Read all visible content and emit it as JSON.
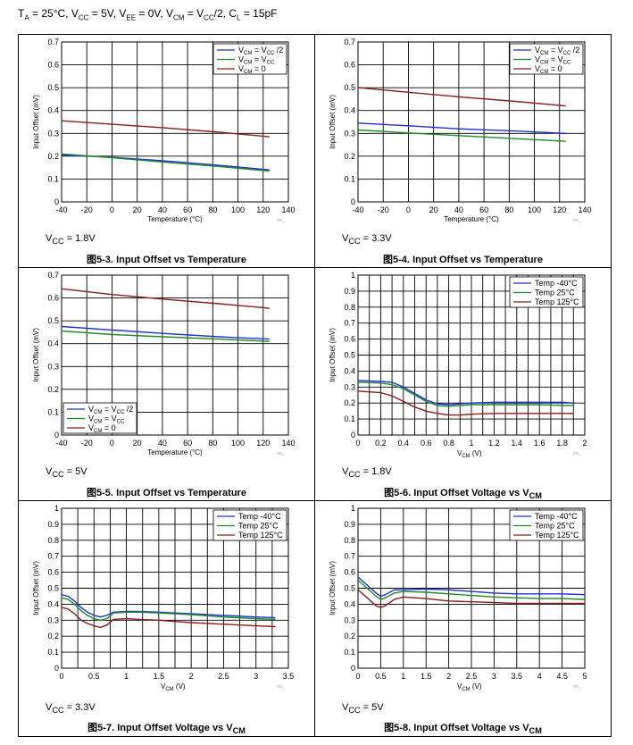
{
  "conditions": {
    "ta_sym": "T",
    "ta_sub": "A",
    "ta_val": " = 25°C, ",
    "vcc_sym": "V",
    "vcc_sub": "CC",
    "vcc_val": " = 5V, ",
    "vee_sym": "V",
    "vee_sub": "EE",
    "vee_val": " = 0V, ",
    "vcm_sym": "V",
    "vcm_sub": "CM",
    "vcm_eq": " = V",
    "vcm_sub2": "CC",
    "vcm_val": "/2, ",
    "cl_sym": "C",
    "cl_sub": "L",
    "cl_val": " = 15pF"
  },
  "watermark": "vio_",
  "colors": {
    "blue": "#1f2fd6",
    "green": "#1b8a2a",
    "red": "#8b1a1a"
  },
  "chart_data": [
    {
      "id": "fig-5-3",
      "type": "line",
      "caption_num": "5-3.",
      "caption_text": "Input Offset vs Temperature",
      "note": "VCC = 1.8V",
      "note_sym": "V",
      "note_sub": "CC",
      "note_val": " = 1.8V",
      "xlabel": "Temperature (°C)",
      "ylabel": "Input Offset (mV)",
      "xlim": [
        -40,
        140
      ],
      "ylim": [
        0,
        0.7
      ],
      "xticks": [
        -40,
        -20,
        0,
        20,
        40,
        60,
        80,
        100,
        120,
        140
      ],
      "yticks": [
        0,
        0.1,
        0.2,
        0.3,
        0.4,
        0.5,
        0.6,
        0.7
      ],
      "xgrid": [
        -40,
        -20,
        0,
        20,
        40,
        60,
        80,
        100,
        120,
        140
      ],
      "ygrid": [
        0,
        0.1,
        0.2,
        0.3,
        0.4,
        0.5,
        0.6,
        0.7
      ],
      "legend_pos": "top-right",
      "series": [
        {
          "name": "VCM = VCC /2",
          "color": "blue",
          "x": [
            -40,
            0,
            40,
            85,
            125
          ],
          "y": [
            0.205,
            0.195,
            0.18,
            0.16,
            0.14
          ]
        },
        {
          "name": "VCM = VCC",
          "color": "green",
          "x": [
            -40,
            0,
            40,
            85,
            125
          ],
          "y": [
            0.21,
            0.193,
            0.175,
            0.155,
            0.135
          ]
        },
        {
          "name": "VCM = 0",
          "color": "red",
          "x": [
            -40,
            0,
            40,
            85,
            125
          ],
          "y": [
            0.355,
            0.34,
            0.325,
            0.305,
            0.285
          ]
        }
      ]
    },
    {
      "id": "fig-5-4",
      "type": "line",
      "caption_num": "5-4.",
      "caption_text": "Input Offset vs Temperature",
      "note": "VCC = 3.3V",
      "note_sym": "V",
      "note_sub": "CC",
      "note_val": " = 3.3V",
      "xlabel": "Temperature (°C)",
      "ylabel": "Input Offset (mV)",
      "xlim": [
        -40,
        140
      ],
      "ylim": [
        0,
        0.7
      ],
      "xticks": [
        -40,
        -20,
        0,
        20,
        40,
        60,
        80,
        100,
        120,
        140
      ],
      "yticks": [
        0,
        0.1,
        0.2,
        0.3,
        0.4,
        0.5,
        0.6,
        0.7
      ],
      "xgrid": [
        -40,
        -20,
        0,
        20,
        40,
        60,
        80,
        100,
        120,
        140
      ],
      "ygrid": [
        0,
        0.1,
        0.2,
        0.3,
        0.4,
        0.5,
        0.6,
        0.7
      ],
      "legend_pos": "top-right",
      "series": [
        {
          "name": "VCM = VCC /2",
          "color": "blue",
          "x": [
            -40,
            0,
            40,
            85,
            125
          ],
          "y": [
            0.345,
            0.333,
            0.32,
            0.31,
            0.3
          ]
        },
        {
          "name": "VCM = VCC",
          "color": "green",
          "x": [
            -40,
            0,
            40,
            85,
            125
          ],
          "y": [
            0.315,
            0.302,
            0.29,
            0.277,
            0.265
          ]
        },
        {
          "name": "VCM = 0",
          "color": "red",
          "x": [
            -40,
            0,
            40,
            85,
            125
          ],
          "y": [
            0.5,
            0.48,
            0.46,
            0.44,
            0.42
          ]
        }
      ]
    },
    {
      "id": "fig-5-5",
      "type": "line",
      "caption_num": "5-5.",
      "caption_text": "Input Offset vs Temperature",
      "note": "VCC = 5V",
      "note_sym": "V",
      "note_sub": "CC",
      "note_val": " = 5V",
      "xlabel": "Temperature (°C)",
      "ylabel": "Input Offset (mV)",
      "xlim": [
        -40,
        140
      ],
      "ylim": [
        0,
        0.7
      ],
      "xticks": [
        -40,
        -20,
        0,
        20,
        40,
        60,
        80,
        100,
        120,
        140
      ],
      "yticks": [
        0,
        0.1,
        0.2,
        0.3,
        0.4,
        0.5,
        0.6,
        0.7
      ],
      "xgrid": [
        -40,
        -20,
        0,
        20,
        40,
        60,
        80,
        100,
        120,
        140
      ],
      "ygrid": [
        0,
        0.1,
        0.2,
        0.3,
        0.4,
        0.5,
        0.6,
        0.7
      ],
      "legend_pos": "bottom-left",
      "series": [
        {
          "name": "VCM = VCC /2",
          "color": "blue",
          "x": [
            -40,
            0,
            40,
            85,
            125
          ],
          "y": [
            0.475,
            0.46,
            0.445,
            0.43,
            0.42
          ]
        },
        {
          "name": "VCM = VCC",
          "color": "green",
          "x": [
            -40,
            0,
            40,
            85,
            125
          ],
          "y": [
            0.455,
            0.44,
            0.43,
            0.42,
            0.41
          ]
        },
        {
          "name": "VCM = 0",
          "color": "red",
          "x": [
            -40,
            0,
            40,
            85,
            125
          ],
          "y": [
            0.64,
            0.615,
            0.595,
            0.575,
            0.555
          ]
        }
      ]
    },
    {
      "id": "fig-5-6",
      "type": "line",
      "caption_num": "5-6.",
      "caption_text": "Input Offset Voltage vs V",
      "caption_sub": "CM",
      "note": "VCC = 1.8V",
      "note_sym": "V",
      "note_sub": "CC",
      "note_val": " = 1.8V",
      "xlabel": "VCM (V)",
      "xlabel_sym": "V",
      "xlabel_sub": "CM",
      "xlabel_unit": " (V)",
      "ylabel": "Input Offset (mV)",
      "xlim": [
        0,
        2
      ],
      "ylim": [
        0,
        1
      ],
      "xticks": [
        0,
        0.2,
        0.4,
        0.6,
        0.8,
        1,
        1.2,
        1.4,
        1.6,
        1.8,
        2
      ],
      "yticks": [
        0,
        0.1,
        0.2,
        0.3,
        0.4,
        0.5,
        0.6,
        0.7,
        0.8,
        0.9,
        1
      ],
      "xgrid": [
        0,
        0.1,
        0.2,
        0.3,
        0.4,
        0.5,
        0.6,
        0.7,
        0.8,
        0.9,
        1,
        1.1,
        1.2,
        1.3,
        1.4,
        1.5,
        1.6,
        1.7,
        1.8,
        1.9,
        2
      ],
      "ygrid": [
        0,
        0.1,
        0.2,
        0.3,
        0.4,
        0.5,
        0.6,
        0.7,
        0.8,
        0.9,
        1
      ],
      "legend_pos": "top-right",
      "series": [
        {
          "name": "Temp -40°C",
          "color": "blue",
          "x": [
            0,
            0.1,
            0.2,
            0.3,
            0.4,
            0.5,
            0.6,
            0.7,
            0.8,
            0.9,
            1.0,
            1.2,
            1.4,
            1.6,
            1.8,
            1.9
          ],
          "y": [
            0.34,
            0.338,
            0.335,
            0.33,
            0.3,
            0.26,
            0.22,
            0.195,
            0.19,
            0.195,
            0.2,
            0.205,
            0.205,
            0.205,
            0.205,
            0.2
          ]
        },
        {
          "name": "Temp 25°C",
          "color": "green",
          "x": [
            0,
            0.1,
            0.2,
            0.3,
            0.4,
            0.5,
            0.6,
            0.7,
            0.8,
            0.9,
            1.0,
            1.2,
            1.4,
            1.6,
            1.8,
            1.9
          ],
          "y": [
            0.33,
            0.328,
            0.325,
            0.315,
            0.29,
            0.25,
            0.21,
            0.185,
            0.18,
            0.185,
            0.19,
            0.19,
            0.19,
            0.19,
            0.185,
            0.185
          ]
        },
        {
          "name": "Temp 125°C",
          "color": "red",
          "x": [
            0,
            0.1,
            0.2,
            0.3,
            0.4,
            0.5,
            0.6,
            0.7,
            0.8,
            0.9,
            1.0,
            1.2,
            1.4,
            1.6,
            1.8,
            1.9
          ],
          "y": [
            0.275,
            0.27,
            0.265,
            0.245,
            0.21,
            0.175,
            0.15,
            0.135,
            0.125,
            0.125,
            0.13,
            0.135,
            0.135,
            0.135,
            0.135,
            0.135
          ]
        }
      ]
    },
    {
      "id": "fig-5-7",
      "type": "line",
      "caption_num": "5-7.",
      "caption_text": "Input Offset Voltage vs V",
      "caption_sub": "CM",
      "note": "VCC = 3.3V",
      "note_sym": "V",
      "note_sub": "CC",
      "note_val": " = 3.3V",
      "xlabel": "VCM (V)",
      "xlabel_sym": "V",
      "xlabel_sub": "CM",
      "xlabel_unit": " (V)",
      "ylabel": "Input Offset (mV)",
      "xlim": [
        0,
        3.5
      ],
      "ylim": [
        0,
        1
      ],
      "xticks": [
        0,
        0.5,
        1,
        1.5,
        2,
        2.5,
        3,
        3.5
      ],
      "yticks": [
        0,
        0.1,
        0.2,
        0.3,
        0.4,
        0.5,
        0.6,
        0.7,
        0.8,
        0.9,
        1
      ],
      "xgrid": [
        0,
        0.25,
        0.5,
        0.75,
        1,
        1.25,
        1.5,
        1.75,
        2,
        2.25,
        2.5,
        2.75,
        3,
        3.25,
        3.5
      ],
      "ygrid": [
        0,
        0.1,
        0.2,
        0.3,
        0.4,
        0.5,
        0.6,
        0.7,
        0.8,
        0.9,
        1
      ],
      "legend_pos": "top-right",
      "series": [
        {
          "name": "Temp -40°C",
          "color": "blue",
          "x": [
            0,
            0.1,
            0.2,
            0.3,
            0.4,
            0.5,
            0.6,
            0.7,
            0.8,
            1.0,
            1.2,
            1.5,
            2.0,
            2.5,
            3.0,
            3.3
          ],
          "y": [
            0.46,
            0.45,
            0.42,
            0.38,
            0.35,
            0.33,
            0.32,
            0.33,
            0.35,
            0.355,
            0.355,
            0.35,
            0.34,
            0.33,
            0.32,
            0.315
          ]
        },
        {
          "name": "Temp 25°C",
          "color": "green",
          "x": [
            0,
            0.1,
            0.2,
            0.3,
            0.4,
            0.5,
            0.6,
            0.7,
            0.8,
            1.0,
            1.2,
            1.5,
            2.0,
            2.5,
            3.0,
            3.3
          ],
          "y": [
            0.44,
            0.43,
            0.4,
            0.36,
            0.33,
            0.31,
            0.3,
            0.31,
            0.345,
            0.35,
            0.35,
            0.345,
            0.335,
            0.32,
            0.31,
            0.305
          ]
        },
        {
          "name": "Temp 125°C",
          "color": "red",
          "x": [
            0,
            0.1,
            0.2,
            0.3,
            0.4,
            0.5,
            0.6,
            0.7,
            0.8,
            1.0,
            1.2,
            1.5,
            2.0,
            2.5,
            3.0,
            3.3
          ],
          "y": [
            0.38,
            0.37,
            0.34,
            0.3,
            0.28,
            0.265,
            0.255,
            0.27,
            0.305,
            0.31,
            0.305,
            0.3,
            0.285,
            0.275,
            0.265,
            0.26
          ]
        }
      ]
    },
    {
      "id": "fig-5-8",
      "type": "line",
      "caption_num": "5-8.",
      "caption_text": "Input Offset Voltage vs V",
      "caption_sub": "CM",
      "note": "VCC = 5V",
      "note_sym": "V",
      "note_sub": "CC",
      "note_val": " = 5V",
      "xlabel": "VCM (V)",
      "xlabel_sym": "V",
      "xlabel_sub": "CM",
      "xlabel_unit": " (V)",
      "ylabel": "Input Offset (mV)",
      "xlim": [
        0,
        5
      ],
      "ylim": [
        0,
        1
      ],
      "xticks": [
        0,
        0.5,
        1,
        1.5,
        2,
        2.5,
        3,
        3.5,
        4,
        4.5,
        5
      ],
      "yticks": [
        0,
        0.1,
        0.2,
        0.3,
        0.4,
        0.5,
        0.6,
        0.7,
        0.8,
        0.9,
        1
      ],
      "xgrid": [
        0,
        0.5,
        1,
        1.5,
        2,
        2.5,
        3,
        3.5,
        4,
        4.5,
        5
      ],
      "ygrid": [
        0,
        0.1,
        0.2,
        0.3,
        0.4,
        0.5,
        0.6,
        0.7,
        0.8,
        0.9,
        1
      ],
      "legend_pos": "top-right",
      "series": [
        {
          "name": "Temp -40°C",
          "color": "blue",
          "x": [
            0,
            0.2,
            0.4,
            0.5,
            0.6,
            0.8,
            1.0,
            1.5,
            2.0,
            2.5,
            3.0,
            3.5,
            4.0,
            4.5,
            5.0
          ],
          "y": [
            0.57,
            0.52,
            0.47,
            0.45,
            0.46,
            0.49,
            0.49,
            0.495,
            0.49,
            0.48,
            0.47,
            0.465,
            0.465,
            0.465,
            0.46
          ]
        },
        {
          "name": "Temp 25°C",
          "color": "green",
          "x": [
            0,
            0.2,
            0.4,
            0.5,
            0.6,
            0.8,
            1.0,
            1.5,
            2.0,
            2.5,
            3.0,
            3.5,
            4.0,
            4.5,
            5.0
          ],
          "y": [
            0.55,
            0.5,
            0.45,
            0.43,
            0.44,
            0.47,
            0.48,
            0.475,
            0.465,
            0.455,
            0.445,
            0.44,
            0.435,
            0.435,
            0.43
          ]
        },
        {
          "name": "Temp 125°C",
          "color": "red",
          "x": [
            0,
            0.2,
            0.4,
            0.5,
            0.6,
            0.8,
            1.0,
            1.5,
            2.0,
            2.5,
            3.0,
            3.5,
            4.0,
            4.5,
            5.0
          ],
          "y": [
            0.49,
            0.44,
            0.39,
            0.38,
            0.39,
            0.43,
            0.445,
            0.435,
            0.42,
            0.415,
            0.41,
            0.405,
            0.405,
            0.405,
            0.405
          ]
        }
      ]
    }
  ]
}
